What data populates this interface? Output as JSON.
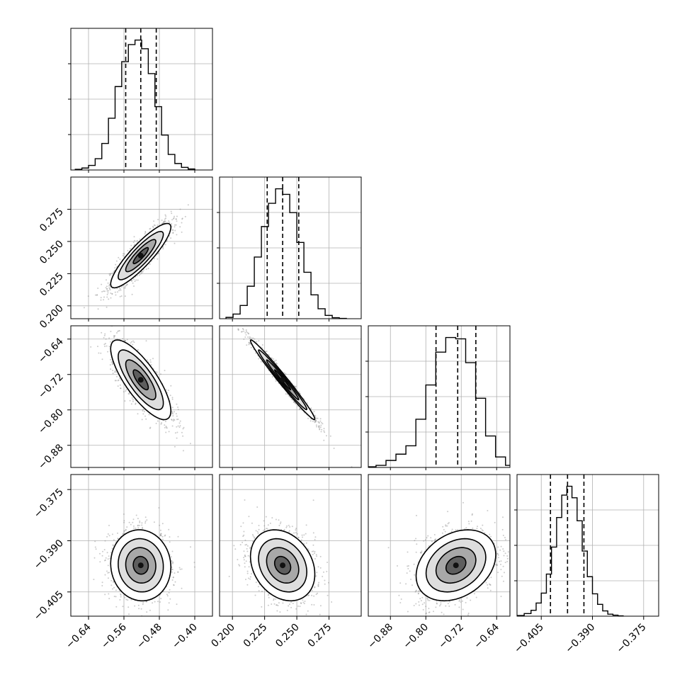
{
  "chart_data": {
    "type": "corner",
    "grid": true,
    "parameters": [
      {
        "key": "p0",
        "range": [
          -0.68,
          -0.36
        ],
        "ticks": [
          -0.64,
          -0.56,
          -0.48,
          -0.4
        ],
        "tick_labels": [
          "−0.64",
          "−0.56",
          "−0.48",
          "−0.40"
        ]
      },
      {
        "key": "p1",
        "range": [
          0.19,
          0.3
        ],
        "ticks": [
          0.2,
          0.225,
          0.25,
          0.275
        ],
        "tick_labels": [
          "0.200",
          "0.225",
          "0.250",
          "0.275"
        ]
      },
      {
        "key": "p2",
        "range": [
          -0.93,
          -0.61
        ],
        "ticks": [
          -0.88,
          -0.8,
          -0.72,
          -0.64
        ],
        "tick_labels": [
          "−0.88",
          "−0.80",
          "−0.72",
          "−0.64"
        ]
      },
      {
        "key": "p3",
        "range": [
          -0.4121,
          -0.3706
        ],
        "ticks": [
          -0.405,
          -0.39,
          -0.375
        ],
        "tick_labels": [
          "−0.405",
          "−0.390",
          "−0.375"
        ]
      }
    ],
    "marginals": [
      {
        "param": "p0",
        "bins": [
          -0.67,
          -0.655,
          -0.64,
          -0.625,
          -0.61,
          -0.595,
          -0.58,
          -0.565,
          -0.55,
          -0.535,
          -0.52,
          -0.505,
          -0.49,
          -0.475,
          -0.46,
          -0.445,
          -0.43,
          -0.415,
          -0.4
        ],
        "counts": [
          2,
          6,
          14,
          35,
          82,
          160,
          258,
          335,
          388,
          402,
          375,
          298,
          196,
          108,
          48,
          20,
          8,
          3
        ],
        "quantiles": [
          -0.556,
          -0.522,
          -0.487
        ]
      },
      {
        "param": "p1",
        "bins": [
          0.195,
          0.2005,
          0.206,
          0.2115,
          0.217,
          0.2225,
          0.228,
          0.2335,
          0.239,
          0.2445,
          0.25,
          0.2555,
          0.261,
          0.2665,
          0.272,
          0.2775,
          0.283,
          0.2885
        ],
        "counts": [
          4,
          14,
          40,
          98,
          186,
          278,
          348,
          392,
          375,
          320,
          230,
          140,
          72,
          30,
          10,
          3,
          1
        ],
        "quantiles": [
          0.227,
          0.239,
          0.2515
        ]
      },
      {
        "param": "p2",
        "bins": [
          -0.935,
          -0.9125,
          -0.89,
          -0.8675,
          -0.845,
          -0.8225,
          -0.8,
          -0.7775,
          -0.755,
          -0.7325,
          -0.71,
          -0.6875,
          -0.665,
          -0.6425,
          -0.62,
          -0.5975
        ],
        "counts": [
          2,
          6,
          20,
          38,
          62,
          138,
          236,
          330,
          372,
          368,
          300,
          198,
          90,
          30,
          6
        ],
        "quantiles": [
          -0.777,
          -0.728,
          -0.687
        ]
      },
      {
        "param": "p3",
        "bins": [
          -0.4121,
          -0.41,
          -0.408,
          -0.4065,
          -0.405,
          -0.4035,
          -0.402,
          -0.4005,
          -0.399,
          -0.3975,
          -0.396,
          -0.3945,
          -0.393,
          -0.3915,
          -0.39,
          -0.3885,
          -0.387,
          -0.3855,
          -0.384,
          -0.3825,
          -0.381
        ],
        "counts": [
          2,
          8,
          18,
          40,
          70,
          128,
          210,
          300,
          368,
          395,
          360,
          290,
          198,
          120,
          68,
          36,
          16,
          6,
          3,
          1
        ],
        "quantiles": [
          -0.4023,
          -0.3973,
          -0.3925
        ]
      }
    ],
    "joints": [
      {
        "x": "p0",
        "y": "p1",
        "mean": [
          -0.522,
          0.239
        ],
        "std": [
          0.034,
          0.0125
        ],
        "corr": 0.88
      },
      {
        "x": "p0",
        "y": "p2",
        "mean": [
          -0.522,
          -0.732
        ],
        "std": [
          0.034,
          0.045
        ],
        "corr": -0.78
      },
      {
        "x": "p1",
        "y": "p2",
        "mean": [
          0.239,
          -0.732
        ],
        "std": [
          0.0125,
          0.045
        ],
        "corr": -0.985
      },
      {
        "x": "p0",
        "y": "p3",
        "mean": [
          -0.522,
          -0.3972
        ],
        "std": [
          0.034,
          0.0052
        ],
        "corr": -0.05
      },
      {
        "x": "p1",
        "y": "p3",
        "mean": [
          0.239,
          -0.3972
        ],
        "std": [
          0.0125,
          0.0052
        ],
        "corr": -0.25
      },
      {
        "x": "p2",
        "y": "p3",
        "mean": [
          -0.732,
          -0.3972
        ],
        "std": [
          0.045,
          0.0052
        ],
        "corr": 0.3
      }
    ],
    "contour_levels_sigma": [
      0.5,
      1.0,
      1.5,
      2.0
    ],
    "colors": {
      "hist": "#000000",
      "grid": "#b0b0b0",
      "scatter": "#8c8c8c"
    }
  }
}
